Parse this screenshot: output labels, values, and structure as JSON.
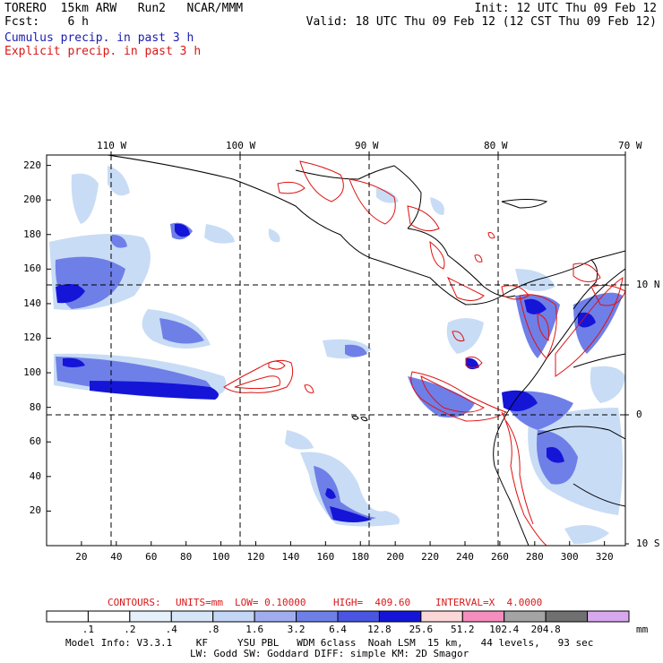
{
  "header": {
    "left_line1": "TORERO  15km ARW   Run2   NCAR/MMM",
    "left_line2": "Fcst:    6 h",
    "right_line1": "Init: 12 UTC Thu 09 Feb 12",
    "right_line2": "Valid: 18 UTC Thu 09 Feb 12 (12 CST Thu 09 Feb 12)",
    "legend_cumulus": "Cumulus precip. in past 3 h",
    "legend_explicit": "Explicit precip. in past 3 h"
  },
  "colors": {
    "cumulus_text": "#1b1bb0",
    "explicit_text": "#d81818",
    "precip_light": "#c8dcf5",
    "precip_mid": "#6f7fe8",
    "precip_dark": "#1515d8",
    "contour_red": "#e01010"
  },
  "map": {
    "top_lon_labels": [
      "110 W",
      "100 W",
      "90 W",
      "80 W",
      "70 W"
    ],
    "right_lat_labels": [
      "10 N",
      "0",
      "10 S"
    ],
    "y_ticks": [
      "220",
      "200",
      "180",
      "160",
      "140",
      "120",
      "100",
      "80",
      "60",
      "40",
      "20"
    ],
    "x_ticks": [
      "20",
      "40",
      "60",
      "80",
      "100",
      "120",
      "140",
      "160",
      "180",
      "200",
      "220",
      "240",
      "260",
      "280",
      "300",
      "320"
    ]
  },
  "contour_info": {
    "contours_label": "CONTOURS:",
    "units": "UNITS=mm",
    "low": "LOW= 0.10000",
    "high": "HIGH=  409.60",
    "interval": "INTERVAL=X  4.0000"
  },
  "colorbar": {
    "labels": [
      ".1",
      ".2",
      ".4",
      ".8",
      "1.6",
      "3.2",
      "6.4",
      "12.8",
      "25.6",
      "51.2",
      "102.4",
      "204.8"
    ],
    "unit": "mm",
    "colors": [
      "#ffffff",
      "#ffffff",
      "#e6f0fb",
      "#d6e6f8",
      "#c3d6f5",
      "#a0aef0",
      "#6f7fe8",
      "#4a55e2",
      "#1515d8",
      "#fcd7d7",
      "#f58ebf",
      "#a4a4a4",
      "#707070",
      "#d7a8ee"
    ]
  },
  "footer": {
    "line1": "Model Info: V3.3.1    KF     YSU PBL   WDM 6class  Noah LSM  15 km,   44 levels,   93 sec",
    "line2": "LW: Godd SW: Goddard DIFF: simple KM: 2D Smagor"
  }
}
